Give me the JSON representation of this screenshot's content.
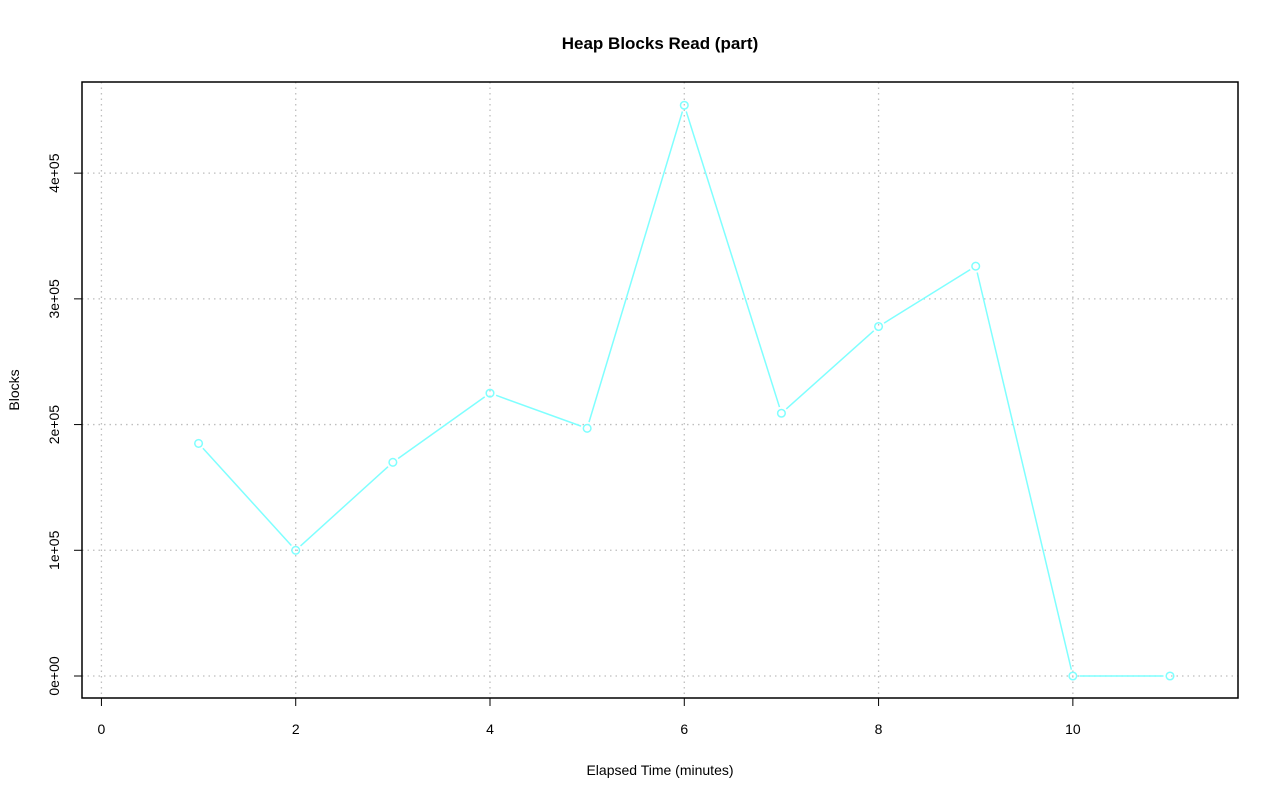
{
  "chart_data": {
    "type": "line",
    "title": "Heap Blocks Read (part)",
    "xlabel": "Elapsed Time (minutes)",
    "ylabel": "Blocks",
    "xlim": [
      -0.2,
      11.7
    ],
    "ylim": [
      -17500,
      472500
    ],
    "x_ticks": [
      0,
      2,
      4,
      6,
      8,
      10
    ],
    "x_tick_labels": [
      "0",
      "2",
      "4",
      "6",
      "8",
      "10"
    ],
    "y_ticks": [
      0,
      100000,
      200000,
      300000,
      400000
    ],
    "y_tick_labels": [
      "0e+00",
      "1e+05",
      "2e+05",
      "3e+05",
      "4e+05"
    ],
    "grid": true,
    "series": [
      {
        "color": "#7fffff",
        "x": [
          1,
          2,
          3,
          4,
          5,
          6,
          7,
          8,
          9,
          10,
          11
        ],
        "y": [
          185000,
          100000,
          170000,
          225000,
          197000,
          454000,
          209000,
          278000,
          326000,
          0,
          0
        ]
      }
    ]
  }
}
